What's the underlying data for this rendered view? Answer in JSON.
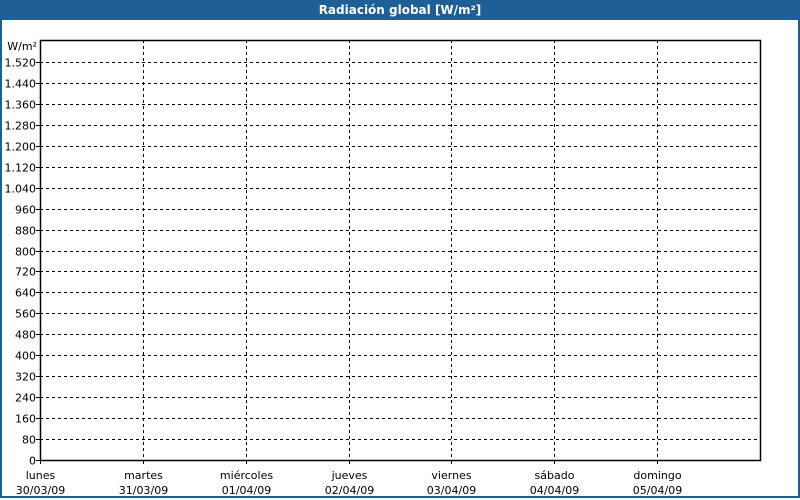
{
  "window": {
    "title": "Radiación global [W/m²]",
    "accent": "#1d5f96"
  },
  "chart_data": {
    "type": "line",
    "title": "Radiación global [W/m²]",
    "ylabel": "W/m²",
    "ylim": [
      0,
      1600
    ],
    "yticks": [
      0,
      80,
      160,
      240,
      320,
      400,
      480,
      560,
      640,
      720,
      800,
      880,
      960,
      1040,
      1120,
      1200,
      1280,
      1360,
      1440,
      1520
    ],
    "ytick_labels": [
      "0",
      "80",
      "160",
      "240",
      "320",
      "400",
      "480",
      "560",
      "640",
      "720",
      "800",
      "880",
      "960",
      "1.040",
      "1.120",
      "1.200",
      "1.280",
      "1.360",
      "1.440",
      "1.520"
    ],
    "x_categories": [
      {
        "day": "lunes",
        "date": "30/03/09"
      },
      {
        "day": "martes",
        "date": "31/03/09"
      },
      {
        "day": "miércoles",
        "date": "01/04/09"
      },
      {
        "day": "jueves",
        "date": "02/04/09"
      },
      {
        "day": "viernes",
        "date": "03/04/09"
      },
      {
        "day": "sábado",
        "date": "04/04/09"
      },
      {
        "day": "domingo",
        "date": "05/04/09"
      }
    ],
    "grid": true,
    "series": []
  }
}
